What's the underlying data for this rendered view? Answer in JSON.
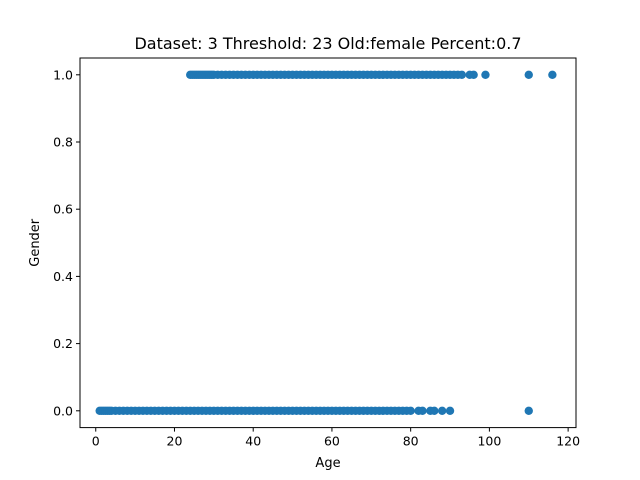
{
  "chart_data": {
    "type": "scatter",
    "title": "Dataset: 3 Threshold: 23 Old:female Percent:0.7",
    "xlabel": "Age",
    "ylabel": "Gender",
    "xlim": [
      -4,
      122
    ],
    "ylim": [
      -0.05,
      1.05
    ],
    "xticks": [
      0,
      20,
      40,
      60,
      80,
      100,
      120
    ],
    "yticks": [
      0.0,
      0.2,
      0.4,
      0.6,
      0.8,
      1.0
    ],
    "xtick_labels": [
      "0",
      "20",
      "40",
      "60",
      "80",
      "100",
      "120"
    ],
    "ytick_labels": [
      "0.0",
      "0.2",
      "0.4",
      "0.6",
      "0.8",
      "1.0"
    ],
    "grid": false,
    "marker_color": "#1f77b4",
    "series": [
      {
        "y": 1,
        "x": [
          24,
          24.5,
          25,
          25.5,
          26,
          26.5,
          27,
          27.5,
          28,
          28.5,
          29,
          29.5,
          30,
          31,
          32,
          33,
          34,
          35,
          36,
          37,
          38,
          39,
          40,
          41,
          42,
          43,
          44,
          45,
          46,
          47,
          48,
          49,
          50,
          51,
          52,
          53,
          54,
          55,
          56,
          57,
          58,
          59,
          60,
          61,
          62,
          63,
          64,
          65,
          66,
          67,
          68,
          69,
          70,
          71,
          72,
          73,
          74,
          75,
          76,
          77,
          78,
          79,
          80,
          81,
          82,
          83,
          84,
          85,
          86,
          87,
          88,
          89,
          90,
          91,
          92,
          93,
          95,
          96,
          99,
          110,
          116
        ]
      },
      {
        "y": 0,
        "x": [
          1,
          1.5,
          2,
          2.5,
          3,
          3.5,
          4,
          5,
          6,
          7,
          8,
          9,
          10,
          11,
          12,
          13,
          14,
          15,
          16,
          17,
          18,
          19,
          20,
          21,
          22,
          23,
          24,
          25,
          26,
          27,
          28,
          29,
          30,
          31,
          32,
          33,
          34,
          35,
          36,
          37,
          38,
          39,
          40,
          41,
          42,
          43,
          44,
          45,
          46,
          47,
          48,
          49,
          50,
          51,
          52,
          53,
          54,
          55,
          56,
          57,
          58,
          59,
          60,
          61,
          62,
          63,
          64,
          65,
          66,
          67,
          68,
          69,
          70,
          71,
          72,
          73,
          74,
          75,
          76,
          77,
          78,
          79,
          80,
          82,
          83,
          85,
          86,
          88,
          90,
          110
        ]
      }
    ]
  }
}
